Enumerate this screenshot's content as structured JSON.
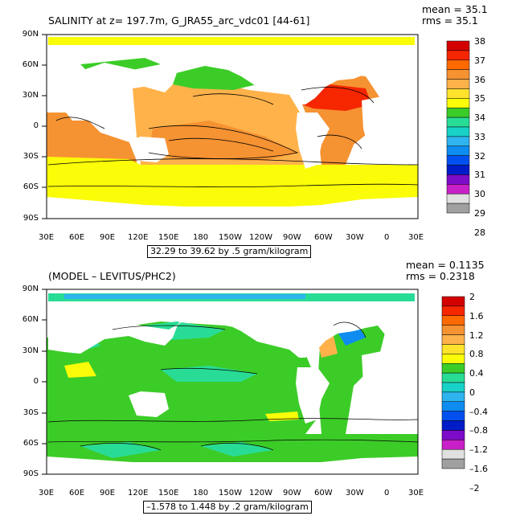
{
  "panel1": {
    "title": "SALINITY at z= 197.7m, G_JRA55_arc_vdc01 [44-61]",
    "mean": "mean = 35.1",
    "rms": "rms = 35.1",
    "range": "32.29 to 39.62 by .5 gram/kilogram",
    "colorbar_labels": [
      "38",
      "37",
      "36",
      "35",
      "34",
      "33",
      "32",
      "31",
      "30",
      "29",
      "28"
    ],
    "colorbar_colors": [
      "#d40000",
      "#f52600",
      "#ff6a00",
      "#f59232",
      "#ffb24a",
      "#ffe22c",
      "#fafc08",
      "#3ccc28",
      "#29dc96",
      "#18d2c8",
      "#2eb4ee",
      "#0e8cf0",
      "#0050f0",
      "#001cc8",
      "#7c0cc8",
      "#c820c8",
      "#e0e0e0",
      "#a0a0a0"
    ]
  },
  "panel2": {
    "title": "(MODEL – LEVITUS/PHC2)",
    "mean": "mean = 0.1135",
    "rms": "rms = 0.2318",
    "range": "–1.578 to 1.448 by .2 gram/kilogram",
    "colorbar_labels": [
      "2",
      "1.6",
      "1.2",
      "0.8",
      "0.4",
      "0",
      "–0.4",
      "–0.8",
      "–1.2",
      "–1.6",
      "–2"
    ],
    "colorbar_colors": [
      "#d40000",
      "#f52600",
      "#ff6a00",
      "#f59232",
      "#ffb24a",
      "#ffe22c",
      "#fafc08",
      "#3ccc28",
      "#29dc96",
      "#18d2c8",
      "#2eb4ee",
      "#0e8cf0",
      "#0050f0",
      "#001cc8",
      "#7c0cc8",
      "#c820c8",
      "#e0e0e0",
      "#a0a0a0"
    ]
  },
  "y_labels": [
    "90N",
    "60N",
    "30N",
    "0",
    "30S",
    "60S",
    "90S"
  ],
  "x_labels": [
    "30E",
    "60E",
    "90E",
    "120E",
    "150E",
    "180",
    "150W",
    "120W",
    "90W",
    "60W",
    "30W",
    "0",
    "30E"
  ]
}
